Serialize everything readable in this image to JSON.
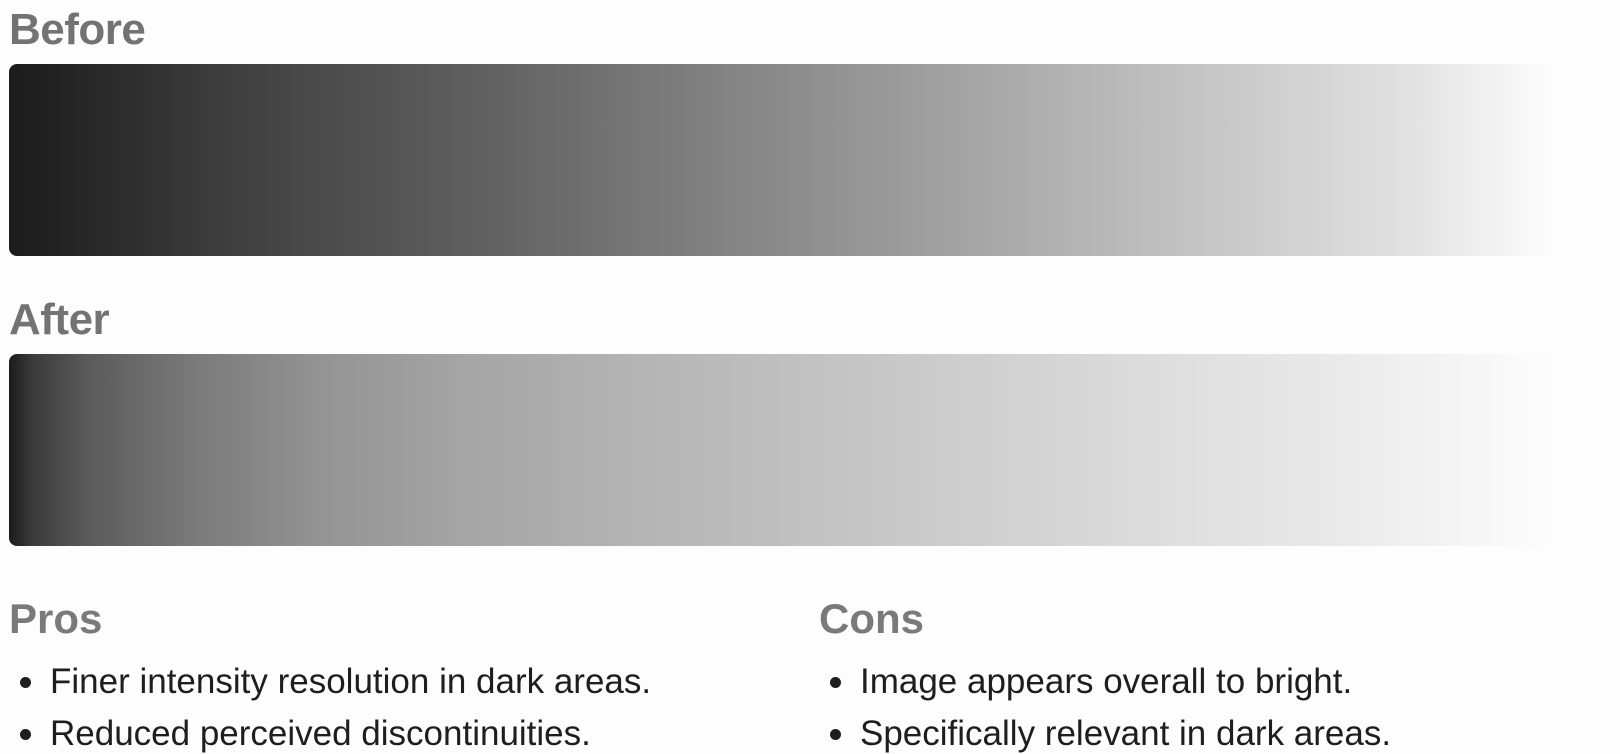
{
  "before": {
    "title": "Before"
  },
  "after": {
    "title": "After"
  },
  "pros": {
    "title": "Pros",
    "items": [
      "Finer intensity resolution in dark areas.",
      "Reduced perceived discontinuities."
    ]
  },
  "cons": {
    "title": "Cons",
    "items": [
      "Image appears overall to bright.",
      "Specifically relevant in dark areas."
    ]
  },
  "colors": {
    "gradient_dark": "#1b1b1b",
    "gradient_light": "#fdfdfd",
    "heading_gray": "#737373"
  }
}
